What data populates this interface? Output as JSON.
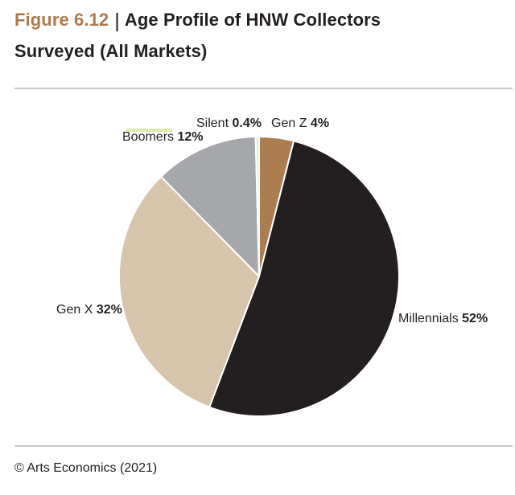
{
  "header": {
    "figure_label": "Figure 6.12",
    "separator": "|",
    "title": "Age Profile of HNW Collectors Surveyed (All Markets)",
    "accent_color": "#b07a4b",
    "text_color": "#231f20"
  },
  "chart_data": {
    "type": "pie",
    "title": "Age Profile of HNW Collectors Surveyed (All Markets)",
    "direction": "clockwise",
    "start_angle": "12 o'clock",
    "slice_border_color": "#ffffff",
    "slices": [
      {
        "id": "gen-z",
        "label": "Gen Z",
        "value": 4,
        "value_label": "4%",
        "color": "#ad7d52"
      },
      {
        "id": "millennials",
        "label": "Millennials",
        "value": 52,
        "value_label": "52%",
        "color": "#231f20"
      },
      {
        "id": "gen-x",
        "label": "Gen X",
        "value": 32,
        "value_label": "32%",
        "color": "#d8c3ab"
      },
      {
        "id": "boomers",
        "label": "Boomers",
        "value": 12,
        "value_label": "12%",
        "color": "#a5a7aa"
      },
      {
        "id": "silent",
        "label": "Silent",
        "value": 0.4,
        "value_label": "0.4%",
        "color": "#ede3d5"
      }
    ]
  },
  "footer": {
    "credit": "© Arts Economics (2021)"
  }
}
